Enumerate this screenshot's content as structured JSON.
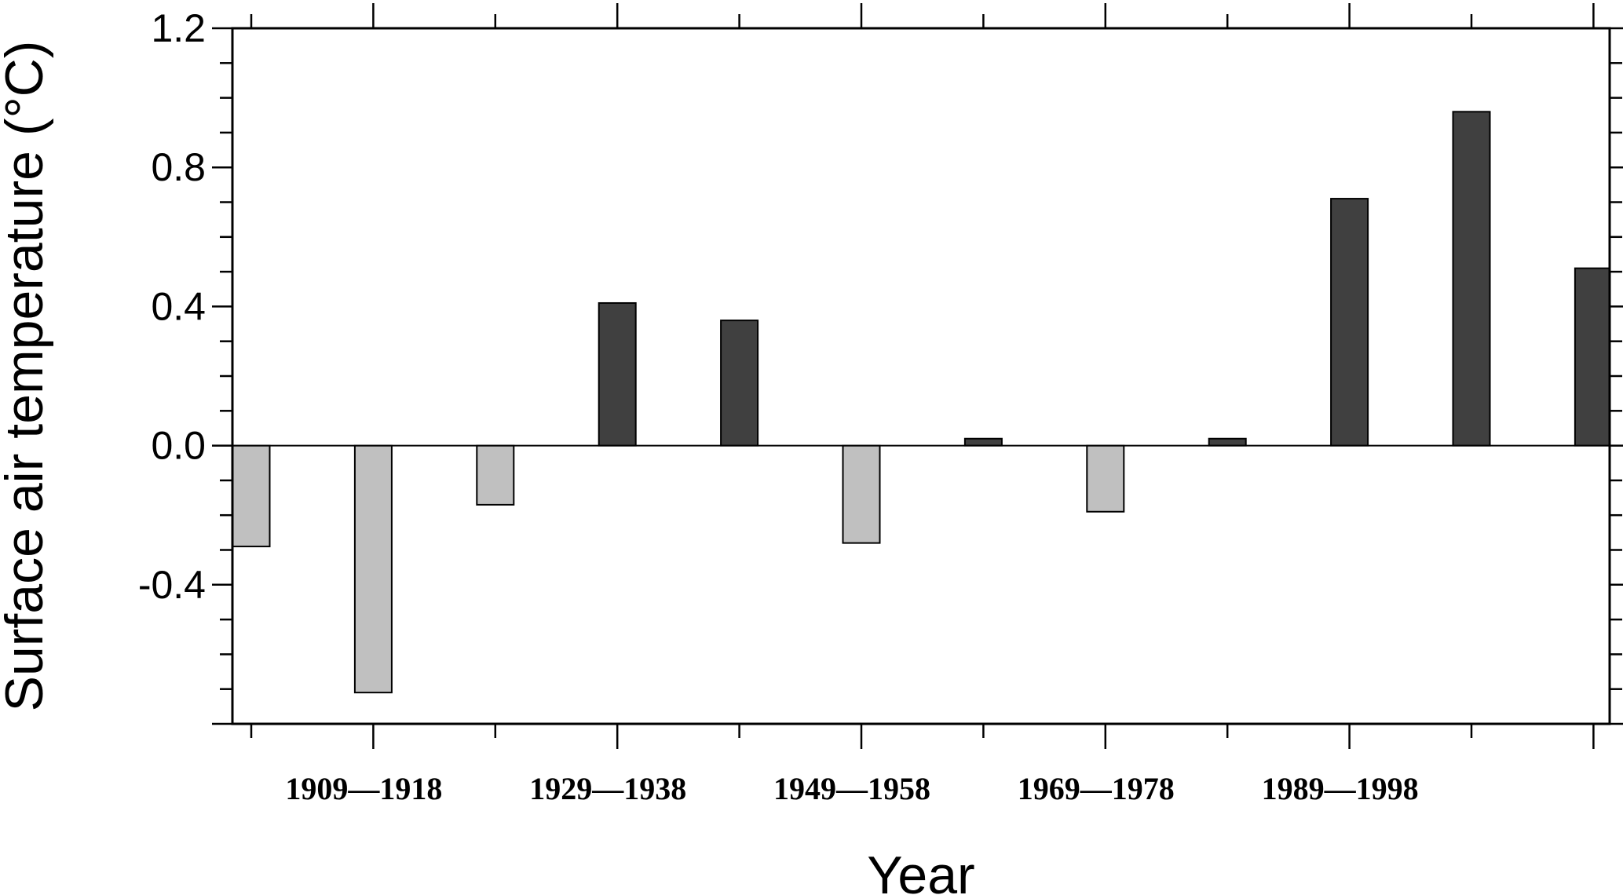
{
  "chart_data": {
    "type": "bar",
    "xlabel": "Year",
    "ylabel": "Surface air temperature (°C)",
    "ylim": [
      -0.8,
      1.2
    ],
    "yticks": [
      "-0.4",
      "0.0",
      "0.4",
      "0.8",
      "1.2"
    ],
    "xtick_labels": [
      "1909—1918",
      "1929—1938",
      "1949—1958",
      "1969—1978",
      "1989—1998"
    ],
    "grid": false,
    "legend": "none",
    "colors": {
      "positive": "#404040",
      "negative": "#c0c0c0"
    },
    "values": [
      -0.29,
      -0.71,
      -0.17,
      0.41,
      0.36,
      -0.28,
      0.02,
      -0.19,
      0.02,
      0.71,
      0.96,
      0.51
    ]
  }
}
